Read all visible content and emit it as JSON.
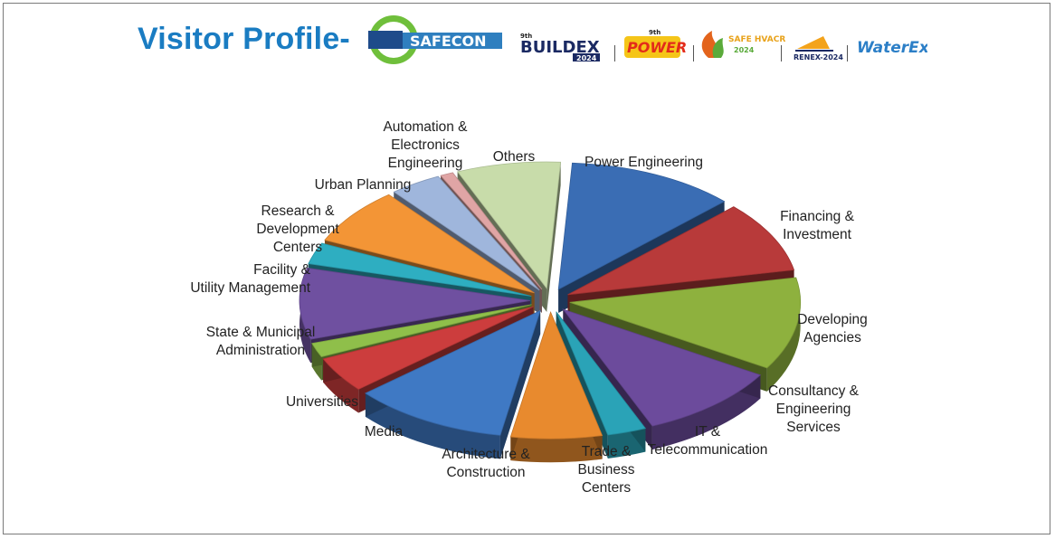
{
  "header": {
    "title": "Visitor Profile-",
    "logos": [
      {
        "name": "safecon-logo",
        "text": "SAFECON",
        "color": "#2f7fbf"
      },
      {
        "name": "buildex-logo",
        "text": "BUILDEX",
        "badge": "2024",
        "prefix": "9th",
        "color": "#1b2a63"
      },
      {
        "name": "power-logo",
        "text": "POWER",
        "prefix": "9th",
        "color": "#e32b1a"
      },
      {
        "name": "safe-hvacr-logo",
        "text": "SAFE HVACR",
        "badge": "2024",
        "color": "#e8a21a"
      },
      {
        "name": "renex-logo",
        "text": "RENEX-2024",
        "color": "#1b2a63"
      },
      {
        "name": "waterex-logo",
        "text": "WaterEx",
        "color": "#2c7fc7"
      }
    ]
  },
  "chart_data": {
    "type": "pie",
    "style": "3d-exploded",
    "legend": "none",
    "categories": [
      "Power Engineering",
      "Financing &\nInvestment",
      "Developing\nAgencies",
      "Consultancy &\nEngineering\nServices",
      "IT &\nTelecommunication",
      "Trade &\nBusiness\nCenters",
      "Architecture &\nConstruction",
      "Media",
      "Universities",
      "State & Municipal\nAdministration",
      "Facility &\nUtility Management",
      "Research &\nDevelopment\nCenters",
      "Urban Planning",
      "Automation &\nElectronics\nEngineering",
      "Others"
    ],
    "values": [
      13,
      10,
      13,
      11,
      3,
      7,
      12,
      5,
      2,
      10,
      3,
      8,
      4,
      1,
      8
    ],
    "colors": [
      "#3a6db4",
      "#b83a3a",
      "#8eb13e",
      "#6c4b9c",
      "#2aa3b7",
      "#e88a2e",
      "#3f79c4",
      "#cc3d3d",
      "#8fbf4a",
      "#6f50a0",
      "#2eaec1",
      "#f39536",
      "#9fb6dc",
      "#e0a5a5",
      "#c8dcaa"
    ]
  }
}
